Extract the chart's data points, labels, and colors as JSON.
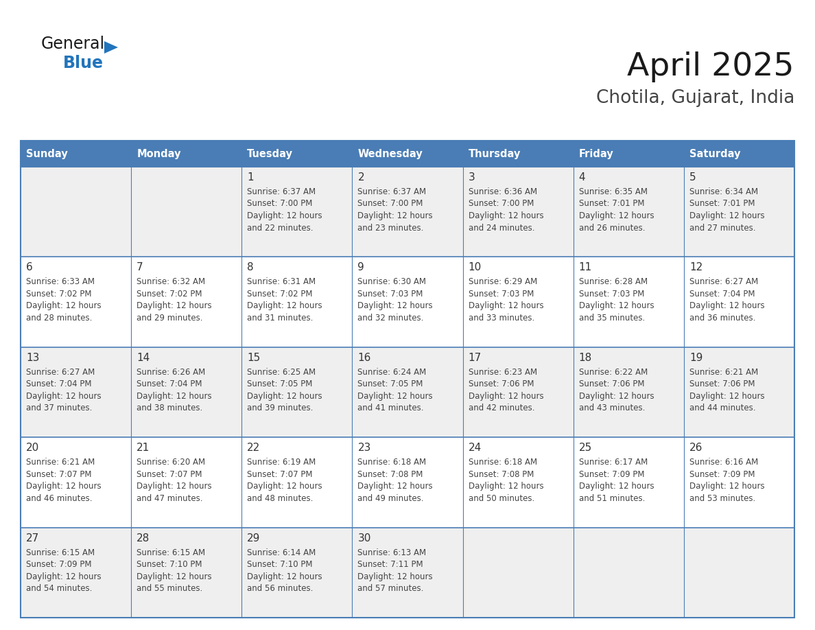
{
  "title": "April 2025",
  "subtitle": "Chotila, Gujarat, India",
  "days_of_week": [
    "Sunday",
    "Monday",
    "Tuesday",
    "Wednesday",
    "Thursday",
    "Friday",
    "Saturday"
  ],
  "header_bg": "#4a7db5",
  "header_text": "#ffffff",
  "cell_bg_light": "#efefef",
  "cell_bg_white": "#ffffff",
  "border_color": "#4a7db5",
  "day_num_color": "#333333",
  "text_color": "#444444",
  "calendar_data": [
    [
      null,
      null,
      {
        "day": 1,
        "sunrise": "6:37 AM",
        "sunset": "7:00 PM",
        "minutes": "22"
      },
      {
        "day": 2,
        "sunrise": "6:37 AM",
        "sunset": "7:00 PM",
        "minutes": "23"
      },
      {
        "day": 3,
        "sunrise": "6:36 AM",
        "sunset": "7:00 PM",
        "minutes": "24"
      },
      {
        "day": 4,
        "sunrise": "6:35 AM",
        "sunset": "7:01 PM",
        "minutes": "26"
      },
      {
        "day": 5,
        "sunrise": "6:34 AM",
        "sunset": "7:01 PM",
        "minutes": "27"
      }
    ],
    [
      {
        "day": 6,
        "sunrise": "6:33 AM",
        "sunset": "7:02 PM",
        "minutes": "28"
      },
      {
        "day": 7,
        "sunrise": "6:32 AM",
        "sunset": "7:02 PM",
        "minutes": "29"
      },
      {
        "day": 8,
        "sunrise": "6:31 AM",
        "sunset": "7:02 PM",
        "minutes": "31"
      },
      {
        "day": 9,
        "sunrise": "6:30 AM",
        "sunset": "7:03 PM",
        "minutes": "32"
      },
      {
        "day": 10,
        "sunrise": "6:29 AM",
        "sunset": "7:03 PM",
        "minutes": "33"
      },
      {
        "day": 11,
        "sunrise": "6:28 AM",
        "sunset": "7:03 PM",
        "minutes": "35"
      },
      {
        "day": 12,
        "sunrise": "6:27 AM",
        "sunset": "7:04 PM",
        "minutes": "36"
      }
    ],
    [
      {
        "day": 13,
        "sunrise": "6:27 AM",
        "sunset": "7:04 PM",
        "minutes": "37"
      },
      {
        "day": 14,
        "sunrise": "6:26 AM",
        "sunset": "7:04 PM",
        "minutes": "38"
      },
      {
        "day": 15,
        "sunrise": "6:25 AM",
        "sunset": "7:05 PM",
        "minutes": "39"
      },
      {
        "day": 16,
        "sunrise": "6:24 AM",
        "sunset": "7:05 PM",
        "minutes": "41"
      },
      {
        "day": 17,
        "sunrise": "6:23 AM",
        "sunset": "7:06 PM",
        "minutes": "42"
      },
      {
        "day": 18,
        "sunrise": "6:22 AM",
        "sunset": "7:06 PM",
        "minutes": "43"
      },
      {
        "day": 19,
        "sunrise": "6:21 AM",
        "sunset": "7:06 PM",
        "minutes": "44"
      }
    ],
    [
      {
        "day": 20,
        "sunrise": "6:21 AM",
        "sunset": "7:07 PM",
        "minutes": "46"
      },
      {
        "day": 21,
        "sunrise": "6:20 AM",
        "sunset": "7:07 PM",
        "minutes": "47"
      },
      {
        "day": 22,
        "sunrise": "6:19 AM",
        "sunset": "7:07 PM",
        "minutes": "48"
      },
      {
        "day": 23,
        "sunrise": "6:18 AM",
        "sunset": "7:08 PM",
        "minutes": "49"
      },
      {
        "day": 24,
        "sunrise": "6:18 AM",
        "sunset": "7:08 PM",
        "minutes": "50"
      },
      {
        "day": 25,
        "sunrise": "6:17 AM",
        "sunset": "7:09 PM",
        "minutes": "51"
      },
      {
        "day": 26,
        "sunrise": "6:16 AM",
        "sunset": "7:09 PM",
        "minutes": "53"
      }
    ],
    [
      {
        "day": 27,
        "sunrise": "6:15 AM",
        "sunset": "7:09 PM",
        "minutes": "54"
      },
      {
        "day": 28,
        "sunrise": "6:15 AM",
        "sunset": "7:10 PM",
        "minutes": "55"
      },
      {
        "day": 29,
        "sunrise": "6:14 AM",
        "sunset": "7:10 PM",
        "minutes": "56"
      },
      {
        "day": 30,
        "sunrise": "6:13 AM",
        "sunset": "7:11 PM",
        "minutes": "57"
      },
      null,
      null,
      null
    ]
  ],
  "logo_color_general": "#1a1a1a",
  "logo_color_blue": "#2275bc",
  "logo_triangle_color": "#2275bc"
}
